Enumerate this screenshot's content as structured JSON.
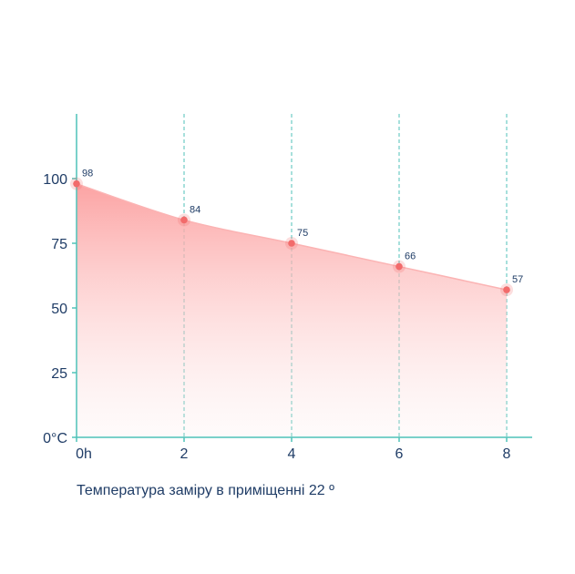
{
  "chart_data": {
    "type": "area",
    "x": [
      0,
      2,
      4,
      6,
      8
    ],
    "x_tick_labels": [
      "0h",
      "2",
      "4",
      "6",
      "8"
    ],
    "y_ticks": [
      0,
      25,
      50,
      75,
      100
    ],
    "y_tick_labels": [
      "0°C",
      "25",
      "50",
      "75",
      "100"
    ],
    "series": [
      {
        "values": [
          98,
          84,
          75,
          66,
          57
        ]
      }
    ],
    "data_labels": [
      "98",
      "84",
      "75",
      "66",
      "57"
    ],
    "xlim": [
      0,
      8.15
    ],
    "ylim": [
      0,
      125
    ],
    "caption": "Температура заміру в приміщенні 22 º",
    "grid": "vertical-dashed",
    "colors": {
      "axis": "#4fc2b8",
      "point": "#f26b6b",
      "fill": "#fca7a7",
      "text": "#1f3c66"
    }
  }
}
